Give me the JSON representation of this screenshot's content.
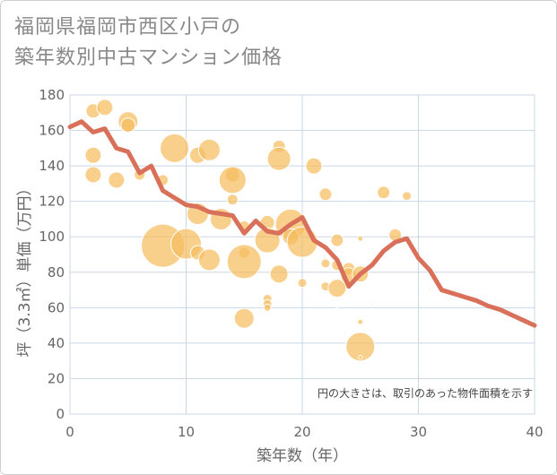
{
  "title_line1": "福岡県福岡市西区小戸の",
  "title_line2": "築年数別中古マンション価格",
  "chart_data": {
    "type": "scatter",
    "xlabel": "築年数（年）",
    "ylabel": "坪（3.3㎡）単価（万円）",
    "xlim": [
      0,
      40
    ],
    "ylim": [
      0,
      180
    ],
    "xticks": [
      0,
      10,
      20,
      30,
      40
    ],
    "yticks": [
      0,
      20,
      40,
      60,
      80,
      100,
      120,
      140,
      160,
      180
    ],
    "grid": true,
    "note": "円の大きさは、取引のあった物件面積を示す",
    "colors": {
      "bubble": "#f5bd5e",
      "line": "#d9705a",
      "grid": "#c9d7e6"
    },
    "bubbles": [
      {
        "x": 2,
        "y": 171,
        "s": 8
      },
      {
        "x": 3,
        "y": 173,
        "s": 9
      },
      {
        "x": 5,
        "y": 165,
        "s": 11
      },
      {
        "x": 5,
        "y": 163,
        "s": 8
      },
      {
        "x": 2,
        "y": 146,
        "s": 9
      },
      {
        "x": 2,
        "y": 135,
        "s": 9
      },
      {
        "x": 4,
        "y": 132,
        "s": 9
      },
      {
        "x": 6,
        "y": 135,
        "s": 6
      },
      {
        "x": 8,
        "y": 132,
        "s": 6
      },
      {
        "x": 9,
        "y": 150,
        "s": 16
      },
      {
        "x": 11,
        "y": 146,
        "s": 9
      },
      {
        "x": 12,
        "y": 149,
        "s": 12
      },
      {
        "x": 14,
        "y": 135,
        "s": 8
      },
      {
        "x": 14,
        "y": 132,
        "s": 15
      },
      {
        "x": 14,
        "y": 121,
        "s": 6
      },
      {
        "x": 8,
        "y": 95,
        "s": 24
      },
      {
        "x": 10,
        "y": 96,
        "s": 17
      },
      {
        "x": 11,
        "y": 113,
        "s": 12
      },
      {
        "x": 11,
        "y": 91,
        "s": 8
      },
      {
        "x": 12,
        "y": 87,
        "s": 12
      },
      {
        "x": 13,
        "y": 110,
        "s": 12
      },
      {
        "x": 15,
        "y": 106,
        "s": 6
      },
      {
        "x": 15,
        "y": 91,
        "s": 6
      },
      {
        "x": 15,
        "y": 86,
        "s": 19
      },
      {
        "x": 15,
        "y": 54,
        "s": 11
      },
      {
        "x": 17,
        "y": 108,
        "s": 8
      },
      {
        "x": 17,
        "y": 98,
        "s": 14
      },
      {
        "x": 17,
        "y": 65,
        "s": 5
      },
      {
        "x": 17,
        "y": 62,
        "s": 5
      },
      {
        "x": 17,
        "y": 60,
        "s": 4
      },
      {
        "x": 18,
        "y": 151,
        "s": 7
      },
      {
        "x": 18,
        "y": 144,
        "s": 13
      },
      {
        "x": 18,
        "y": 79,
        "s": 10
      },
      {
        "x": 19,
        "y": 107,
        "s": 17
      },
      {
        "x": 19,
        "y": 100,
        "s": 9
      },
      {
        "x": 20,
        "y": 97,
        "s": 17
      },
      {
        "x": 20,
        "y": 74,
        "s": 5
      },
      {
        "x": 21,
        "y": 140,
        "s": 9
      },
      {
        "x": 22,
        "y": 124,
        "s": 7
      },
      {
        "x": 22,
        "y": 85,
        "s": 5
      },
      {
        "x": 22,
        "y": 72,
        "s": 5
      },
      {
        "x": 23,
        "y": 98,
        "s": 7
      },
      {
        "x": 23,
        "y": 84,
        "s": 6
      },
      {
        "x": 23,
        "y": 71,
        "s": 10
      },
      {
        "x": 23,
        "y": 60,
        "s": 1
      },
      {
        "x": 24,
        "y": 82,
        "s": 7
      },
      {
        "x": 24,
        "y": 78,
        "s": 9
      },
      {
        "x": 25,
        "y": 99,
        "s": 3
      },
      {
        "x": 25,
        "y": 79,
        "s": 9
      },
      {
        "x": 25,
        "y": 52,
        "s": 3
      },
      {
        "x": 25,
        "y": 38,
        "s": 16
      },
      {
        "x": 25,
        "y": 32,
        "s": 2
      },
      {
        "x": 26,
        "y": 62,
        "s": 1
      },
      {
        "x": 27,
        "y": 125,
        "s": 7
      },
      {
        "x": 28,
        "y": 101,
        "s": 7
      },
      {
        "x": 29,
        "y": 123,
        "s": 5
      },
      {
        "x": 31,
        "y": 70,
        "s": 1
      }
    ],
    "line": {
      "x": [
        0,
        1,
        2,
        3,
        4,
        5,
        6,
        7,
        8,
        9,
        10,
        11,
        12,
        13,
        14,
        15,
        16,
        17,
        18,
        19,
        20,
        21,
        22,
        23,
        24,
        25,
        26,
        27,
        28,
        29,
        30,
        31,
        32,
        33,
        34,
        35,
        36,
        37,
        38,
        39,
        40
      ],
      "y": [
        162,
        165,
        159,
        161,
        150,
        148,
        136,
        140,
        126,
        122,
        118,
        117,
        114,
        113,
        112,
        102,
        109,
        103,
        102,
        107,
        111,
        98,
        94,
        87,
        72,
        79,
        84,
        92,
        97,
        99,
        88,
        81,
        70,
        68,
        66,
        64,
        61,
        59,
        56,
        53,
        50
      ]
    }
  }
}
